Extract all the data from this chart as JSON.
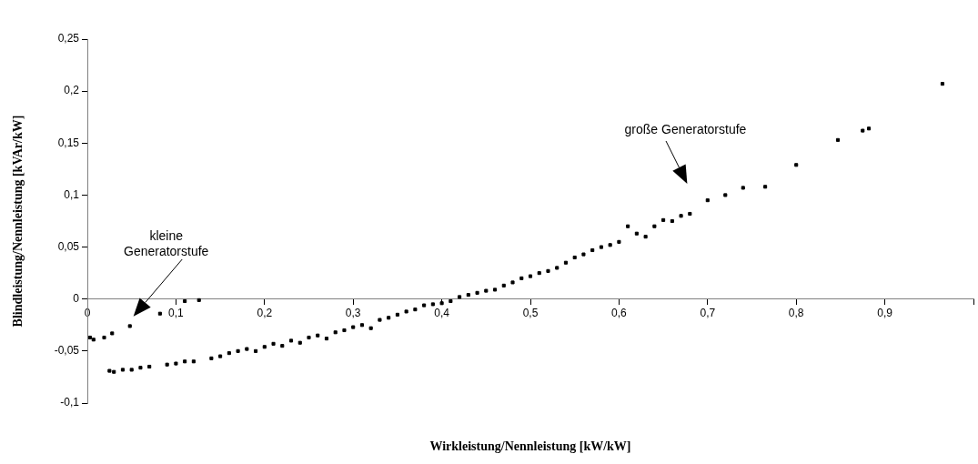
{
  "chart_data": {
    "type": "scatter",
    "xlabel": "Wirkleistung/Nennleistung [kW/kW]",
    "ylabel": "Blindleistung/Nennleistung [kVAr/kW]",
    "xlim": [
      0,
      1
    ],
    "ylim": [
      -0.1,
      0.25
    ],
    "xticks": [
      0,
      {
        "value": 0.1,
        "label": "0,1"
      },
      {
        "value": 0.2,
        "label": "0,2"
      },
      {
        "value": 0.3,
        "label": "0,3"
      },
      {
        "value": 0.4,
        "label": "0,4"
      },
      {
        "value": 0.5,
        "label": "0,5"
      },
      {
        "value": 0.6,
        "label": "0,6"
      },
      {
        "value": 0.7,
        "label": "0,7"
      },
      {
        "value": 0.8,
        "label": "0,8"
      },
      {
        "value": 0.9,
        "label": "0,9"
      },
      {
        "value": 1,
        "label": null
      }
    ],
    "yticks": [
      {
        "value": -0.1,
        "label": "-0,1"
      },
      {
        "value": -0.05,
        "label": "-0,05"
      },
      0,
      {
        "value": 0.05,
        "label": "0,05"
      },
      {
        "value": 0.1,
        "label": "0,1"
      },
      {
        "value": 0.15,
        "label": "0,15"
      },
      {
        "value": 0.2,
        "label": "0,2"
      },
      {
        "value": 0.25,
        "label": "0,25"
      }
    ],
    "grid": false,
    "legend": false,
    "marker": "square",
    "series": [
      {
        "color": "#000000",
        "x": [
          0.003,
          0.007,
          0.019,
          0.028,
          0.048,
          0.082,
          0.11,
          0.126
        ],
        "values": [
          -0.037,
          -0.039,
          -0.037,
          -0.033,
          -0.026,
          -0.014,
          -0.002,
          -0.001
        ]
      },
      {
        "color": "#000000",
        "x": [
          0.025,
          0.03,
          0.04,
          0.05,
          0.06,
          0.07,
          0.09,
          0.1,
          0.11,
          0.12,
          0.14,
          0.15,
          0.16,
          0.17,
          0.18,
          0.19,
          0.2,
          0.21,
          0.22,
          0.23,
          0.24,
          0.25,
          0.26,
          0.27,
          0.28,
          0.29,
          0.3,
          0.31,
          0.32,
          0.33,
          0.34,
          0.35,
          0.36,
          0.37,
          0.38,
          0.39,
          0.4,
          0.41,
          0.42,
          0.43,
          0.44,
          0.45,
          0.46,
          0.47,
          0.48,
          0.49,
          0.5,
          0.51,
          0.52,
          0.53,
          0.54,
          0.55,
          0.56,
          0.57,
          0.58,
          0.59,
          0.6,
          0.61,
          0.62,
          0.63,
          0.64,
          0.65,
          0.66,
          0.67,
          0.68,
          0.7,
          0.72,
          0.74,
          0.765,
          0.8,
          0.847,
          0.875,
          0.882,
          0.965
        ],
        "values": [
          -0.069,
          -0.07,
          -0.068,
          -0.068,
          -0.066,
          -0.065,
          -0.063,
          -0.062,
          -0.06,
          -0.06,
          -0.057,
          -0.055,
          -0.052,
          -0.05,
          -0.048,
          -0.05,
          -0.046,
          -0.043,
          -0.045,
          -0.04,
          -0.042,
          -0.037,
          -0.035,
          -0.038,
          -0.032,
          -0.03,
          -0.027,
          -0.025,
          -0.028,
          -0.02,
          -0.018,
          -0.015,
          -0.012,
          -0.01,
          -0.006,
          -0.005,
          -0.004,
          -0.002,
          0.002,
          0.004,
          0.006,
          0.008,
          0.009,
          0.013,
          0.016,
          0.02,
          0.022,
          0.025,
          0.027,
          0.03,
          0.035,
          0.04,
          0.043,
          0.047,
          0.05,
          0.052,
          0.055,
          0.07,
          0.063,
          0.06,
          0.07,
          0.076,
          0.075,
          0.08,
          0.082,
          0.095,
          0.1,
          0.107,
          0.108,
          0.129,
          0.153,
          0.162,
          0.164,
          0.207
        ]
      }
    ],
    "annotations": [
      "kleine\nGeneratorstufe",
      "große Generatorstufe"
    ]
  }
}
